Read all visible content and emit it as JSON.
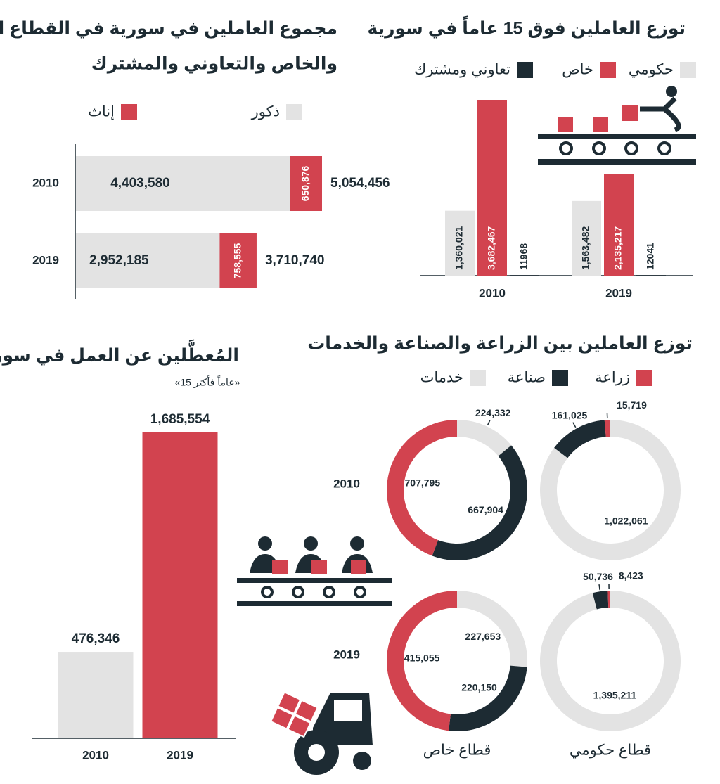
{
  "chart_data": [
    {
      "type": "hbar_stacked",
      "title": [
        "مجموع العاملين في سورية في القطاع العام",
        "والخاص والتعاوني والمشترك"
      ],
      "categories": [
        "2010",
        "2019"
      ],
      "series": [
        {
          "name": "ذكور",
          "color": "#e3e3e3",
          "values": [
            4403580,
            2952185
          ],
          "value_labels": [
            "4,403,580",
            "2,952,185"
          ]
        },
        {
          "name": "إناث",
          "color": "#d2434f",
          "values": [
            650876,
            758555
          ],
          "value_labels": [
            "650,876",
            "758,555"
          ]
        }
      ],
      "totals": [
        5054456,
        3710740
      ],
      "total_labels": [
        "5,054,456",
        "3,710,740"
      ]
    },
    {
      "type": "bar_grouped",
      "title": "توزع العاملين فوق 15 عاماً في سورية",
      "categories": [
        "2010",
        "2019"
      ],
      "series": [
        {
          "name": "حكومي",
          "color": "#e3e3e3",
          "values": [
            1360021,
            1563482
          ],
          "value_labels": [
            "1,360,021",
            "1,563,482"
          ]
        },
        {
          "name": "خاص",
          "color": "#d2434f",
          "values": [
            3682467,
            2135217
          ],
          "value_labels": [
            "3,682,467",
            "2,135,217"
          ]
        },
        {
          "name": "تعاوني ومشترك",
          "color": "#1d2b33",
          "values": [
            11968,
            12041
          ],
          "value_labels": [
            "11968",
            "12041"
          ]
        }
      ]
    },
    {
      "type": "bar",
      "title": "المُعطَّلين عن العمل في سورية",
      "subtitle": "«15 عاماً فأكثر»",
      "categories": [
        "2010",
        "2019"
      ],
      "values": [
        476346,
        1685554
      ],
      "value_labels": [
        "476,346",
        "1,685,554"
      ],
      "colors": [
        "#e3e3e3",
        "#d2434f"
      ]
    },
    {
      "type": "donut",
      "title": "توزع العاملين بين الزراعة والصناعة والخدمات",
      "series": [
        {
          "name": "زراعة",
          "color": "#d2434f"
        },
        {
          "name": "صناعة",
          "color": "#1d2b33"
        },
        {
          "name": "خدمات",
          "color": "#e3e3e3"
        }
      ],
      "rows": [
        "2010",
        "2019"
      ],
      "columns": [
        "قطاع خاص",
        "قطاع حكومي"
      ],
      "values": [
        [
          [
            707795,
            667904,
            224332
          ],
          [
            15719,
            161025,
            1022061
          ]
        ],
        [
          [
            415055,
            220150,
            227653
          ],
          [
            8423,
            50736,
            1395211
          ]
        ]
      ],
      "value_labels": [
        [
          [
            "707,795",
            "667,904",
            "224,332"
          ],
          [
            "15,719",
            "161,025",
            "1,022,061"
          ]
        ],
        [
          [
            "415,055",
            "220,150",
            "227,653"
          ],
          [
            "8,423",
            "50,736",
            "1,395,211"
          ]
        ]
      ]
    }
  ]
}
